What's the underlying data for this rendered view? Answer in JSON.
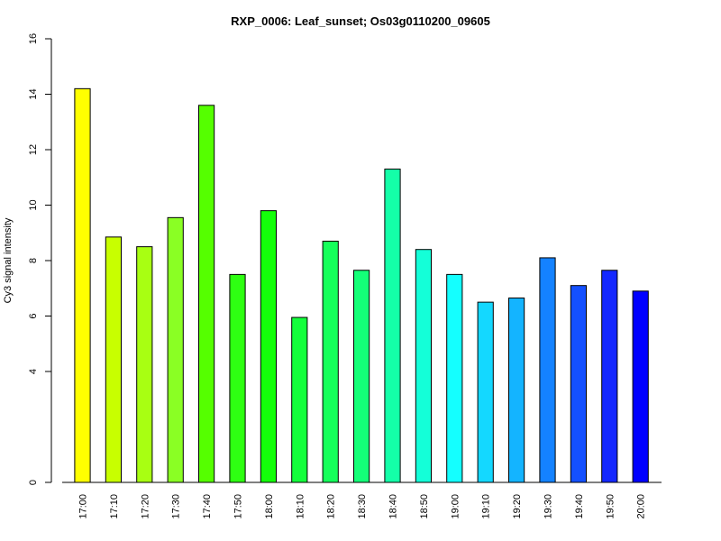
{
  "chart_data": {
    "type": "bar",
    "title": "RXP_0006: Leaf_sunset; Os03g0110200_09605",
    "xlabel": "",
    "ylabel": "Cy3 signal intensity",
    "ylim": [
      0,
      16
    ],
    "yticks": [
      0,
      4,
      6,
      8,
      10,
      12,
      14,
      16
    ],
    "grid": false,
    "categories": [
      "17:00",
      "17:10",
      "17:20",
      "17:30",
      "17:40",
      "17:50",
      "18:00",
      "18:10",
      "18:20",
      "18:30",
      "18:40",
      "18:50",
      "19:00",
      "19:10",
      "19:20",
      "19:30",
      "19:40",
      "19:50",
      "20:00"
    ],
    "values": [
      14.2,
      8.85,
      8.5,
      9.55,
      13.6,
      7.5,
      9.8,
      5.95,
      8.7,
      7.65,
      11.3,
      8.4,
      7.5,
      6.5,
      6.65,
      8.1,
      7.1,
      7.65,
      6.9
    ],
    "colors": [
      "#ffff00",
      "#c8ff00",
      "#a8ff12",
      "#8aff24",
      "#55ff00",
      "#2eff12",
      "#14ff0a",
      "#14ff3c",
      "#14ff5a",
      "#14ff78",
      "#14ffa8",
      "#14ffd8",
      "#14ffff",
      "#14d8ff",
      "#14b4ff",
      "#1482ff",
      "#1450ff",
      "#1428ff",
      "#0000ff"
    ]
  }
}
